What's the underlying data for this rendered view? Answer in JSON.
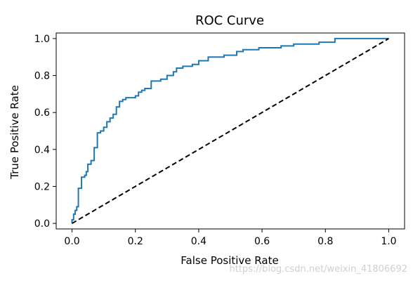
{
  "chart_data": {
    "type": "line",
    "title": "ROC Curve",
    "xlabel": "False Positive Rate",
    "ylabel": "True Positive Rate",
    "xlim": [
      -0.05,
      1.05
    ],
    "ylim": [
      -0.03,
      1.03
    ],
    "grid": false,
    "x_ticks": [
      0.0,
      0.2,
      0.4,
      0.6,
      0.8,
      1.0
    ],
    "x_tick_labels": [
      "0.0",
      "0.2",
      "0.4",
      "0.6",
      "0.8",
      "1.0"
    ],
    "y_ticks": [
      0.0,
      0.2,
      0.4,
      0.6,
      0.8,
      1.0
    ],
    "y_tick_labels": [
      "0.0",
      "0.2",
      "0.4",
      "0.6",
      "0.8",
      "1.0"
    ],
    "series": [
      {
        "style": "solid",
        "color": "#1f77b4",
        "points": [
          [
            0.0,
            0.0
          ],
          [
            0.0,
            0.02
          ],
          [
            0.005,
            0.02
          ],
          [
            0.005,
            0.05
          ],
          [
            0.01,
            0.05
          ],
          [
            0.01,
            0.07
          ],
          [
            0.015,
            0.07
          ],
          [
            0.015,
            0.09
          ],
          [
            0.02,
            0.09
          ],
          [
            0.02,
            0.19
          ],
          [
            0.03,
            0.19
          ],
          [
            0.03,
            0.25
          ],
          [
            0.04,
            0.25
          ],
          [
            0.04,
            0.26
          ],
          [
            0.045,
            0.26
          ],
          [
            0.045,
            0.28
          ],
          [
            0.05,
            0.28
          ],
          [
            0.05,
            0.32
          ],
          [
            0.06,
            0.32
          ],
          [
            0.06,
            0.34
          ],
          [
            0.07,
            0.34
          ],
          [
            0.07,
            0.41
          ],
          [
            0.08,
            0.41
          ],
          [
            0.08,
            0.49
          ],
          [
            0.09,
            0.49
          ],
          [
            0.09,
            0.5
          ],
          [
            0.1,
            0.5
          ],
          [
            0.1,
            0.52
          ],
          [
            0.11,
            0.52
          ],
          [
            0.11,
            0.55
          ],
          [
            0.12,
            0.55
          ],
          [
            0.12,
            0.57
          ],
          [
            0.13,
            0.57
          ],
          [
            0.13,
            0.59
          ],
          [
            0.14,
            0.59
          ],
          [
            0.14,
            0.63
          ],
          [
            0.15,
            0.63
          ],
          [
            0.15,
            0.66
          ],
          [
            0.16,
            0.66
          ],
          [
            0.16,
            0.67
          ],
          [
            0.17,
            0.67
          ],
          [
            0.17,
            0.68
          ],
          [
            0.2,
            0.68
          ],
          [
            0.2,
            0.69
          ],
          [
            0.21,
            0.69
          ],
          [
            0.21,
            0.71
          ],
          [
            0.22,
            0.71
          ],
          [
            0.22,
            0.72
          ],
          [
            0.23,
            0.72
          ],
          [
            0.23,
            0.73
          ],
          [
            0.25,
            0.73
          ],
          [
            0.25,
            0.77
          ],
          [
            0.28,
            0.77
          ],
          [
            0.28,
            0.78
          ],
          [
            0.3,
            0.78
          ],
          [
            0.3,
            0.8
          ],
          [
            0.32,
            0.8
          ],
          [
            0.32,
            0.82
          ],
          [
            0.33,
            0.82
          ],
          [
            0.33,
            0.84
          ],
          [
            0.35,
            0.84
          ],
          [
            0.35,
            0.85
          ],
          [
            0.38,
            0.85
          ],
          [
            0.38,
            0.86
          ],
          [
            0.4,
            0.86
          ],
          [
            0.4,
            0.88
          ],
          [
            0.43,
            0.88
          ],
          [
            0.43,
            0.9
          ],
          [
            0.48,
            0.9
          ],
          [
            0.48,
            0.91
          ],
          [
            0.52,
            0.91
          ],
          [
            0.52,
            0.93
          ],
          [
            0.54,
            0.93
          ],
          [
            0.54,
            0.94
          ],
          [
            0.59,
            0.94
          ],
          [
            0.59,
            0.95
          ],
          [
            0.66,
            0.95
          ],
          [
            0.66,
            0.96
          ],
          [
            0.7,
            0.96
          ],
          [
            0.7,
            0.97
          ],
          [
            0.78,
            0.97
          ],
          [
            0.78,
            0.98
          ],
          [
            0.83,
            0.98
          ],
          [
            0.83,
            1.0
          ],
          [
            1.0,
            1.0
          ]
        ]
      },
      {
        "style": "dashed",
        "color": "#000000",
        "points": [
          [
            0.0,
            0.0
          ],
          [
            1.0,
            1.0
          ]
        ]
      }
    ]
  },
  "watermark": "https://blog.csdn.net/weixin_41806692"
}
